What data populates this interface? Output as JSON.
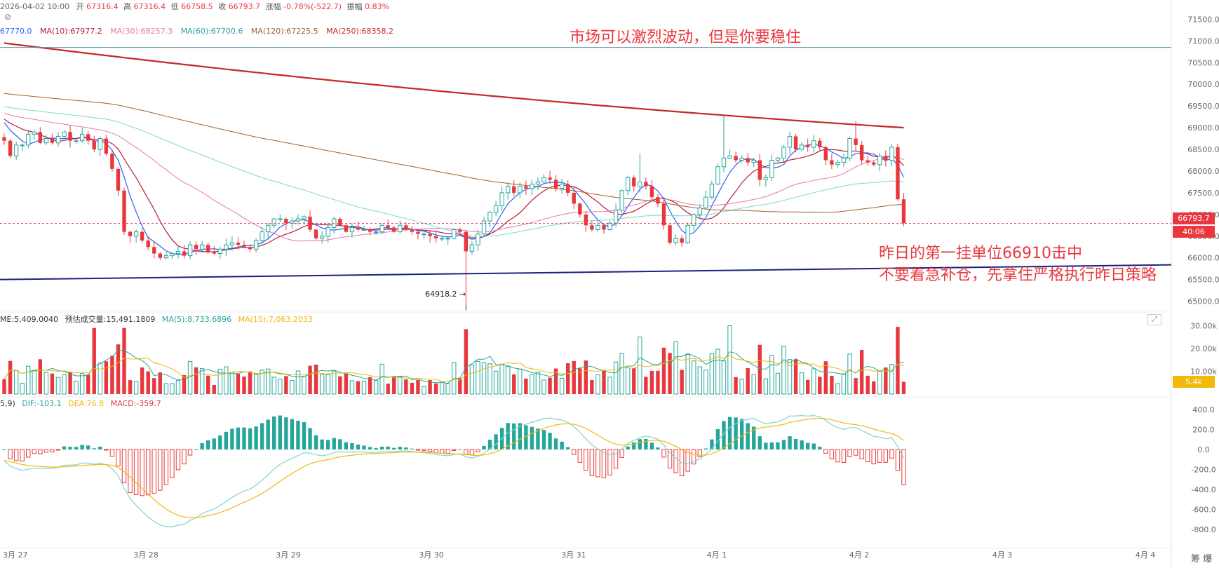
{
  "header": {
    "datetime": "2026-04-02 10:00",
    "open_label": "开",
    "open": "67316.4",
    "high_label": "高",
    "high": "67316.4",
    "low_label": "低",
    "low": "66758.5",
    "close_label": "收",
    "close": "66793.7",
    "change_label": "涨幅",
    "change": "-0.78%(-522.7)",
    "amplitude_label": "振幅",
    "amplitude": "0.83%"
  },
  "ma_legend": [
    {
      "text": "67770.0",
      "color": "#2962ff"
    },
    {
      "text": "MA(10):67977.2",
      "color": "#b71c3c"
    },
    {
      "text": "MA(30):68257.3",
      "color": "#e878a8"
    },
    {
      "text": "MA(60):67700.6",
      "color": "#26a69a"
    },
    {
      "text": "MA(120):67225.5",
      "color": "#a0622d"
    },
    {
      "text": "MA(250):68358.2",
      "color": "#c62828"
    }
  ],
  "volume_legend": [
    {
      "text": "ME:5,409.0040",
      "color": "#333333"
    },
    {
      "text": "预估成交量:15,491.1809",
      "color": "#333333"
    },
    {
      "text": "MA(5):8,733.6896",
      "color": "#26a69a"
    },
    {
      "text": "MA(10):7,063.2033",
      "color": "#f0b90b"
    }
  ],
  "macd_legend": [
    {
      "text": "5,9)",
      "color": "#333333"
    },
    {
      "text": "DIF:-103.1",
      "color": "#26a69a"
    },
    {
      "text": "DEA:76.8",
      "color": "#f0b90b"
    },
    {
      "text": "MACD:-359.7",
      "color": "#e8383d"
    }
  ],
  "annotations": {
    "top": "市场可以激烈波动，但是你要稳住",
    "right_line1": "昨日的第一挂单位66910击中",
    "right_line2": "不要着急补仓，先拿住严格执行昨日策略"
  },
  "price_tag": "66793.7",
  "countdown": "40:06",
  "volume_tag": "5.4k",
  "low_marker": "64918.2",
  "corner_label": "筹 爆",
  "colors": {
    "up": "#26a69a",
    "down": "#e8383d",
    "ma250": "#c62828",
    "trendline": "#1a237e"
  },
  "chart_data": {
    "type": "candlestick",
    "interval": "1h",
    "price_axis": {
      "min": 64800,
      "max": 71700,
      "ticks": [
        71500,
        71000,
        70500,
        70000,
        69500,
        69000,
        68500,
        68000,
        67500,
        67000,
        66500,
        66000,
        65500,
        65000
      ]
    },
    "volume_axis": {
      "max": 32000,
      "ticks": [
        30000,
        20000,
        10000
      ],
      "tick_labels": [
        "30.00k",
        "20.00k",
        "10.00k"
      ]
    },
    "macd_axis": {
      "min": -900,
      "max": 450,
      "ticks": [
        400,
        200,
        0,
        -200,
        -400,
        -600,
        -800
      ],
      "tick_labels": [
        "400.0",
        "200.0",
        "0.0",
        "-200.0",
        "-400.0",
        "-600.0",
        "-800.0"
      ]
    },
    "x_labels": [
      "3月 27",
      "3月 28",
      "3月 29",
      "3月 30",
      "3月 31",
      "4月 1",
      "4月 2",
      "4月 3",
      "4月 4"
    ],
    "closes": [
      68700,
      68350,
      68600,
      68600,
      68850,
      68900,
      68650,
      68750,
      68650,
      68800,
      68900,
      68700,
      68700,
      68850,
      68700,
      68500,
      68750,
      68400,
      68050,
      67550,
      66600,
      66500,
      66600,
      66400,
      66250,
      66100,
      66000,
      66050,
      66100,
      66150,
      66050,
      66300,
      66200,
      66300,
      66150,
      66100,
      66200,
      66300,
      66350,
      66300,
      66250,
      66200,
      66400,
      66600,
      66750,
      66900,
      66900,
      66800,
      66850,
      66900,
      66950,
      66650,
      66450,
      66500,
      66700,
      66900,
      66750,
      66600,
      66700,
      66650,
      66650,
      66600,
      66600,
      66750,
      66700,
      66600,
      66750,
      66650,
      66600,
      66550,
      66550,
      66500,
      66450,
      66450,
      66450,
      66650,
      66600,
      66150,
      66300,
      66550,
      66850,
      67050,
      67200,
      67500,
      67650,
      67500,
      67650,
      67600,
      67700,
      67750,
      67850,
      67800,
      67600,
      67700,
      67500,
      67250,
      67000,
      66750,
      66650,
      66750,
      66650,
      66800,
      67100,
      67550,
      67850,
      67650,
      67750,
      67650,
      67400,
      67250,
      66750,
      66350,
      66450,
      66350,
      66750,
      67000,
      67150,
      67400,
      67700,
      68100,
      68300,
      68350,
      68250,
      68300,
      68200,
      68250,
      67800,
      67850,
      68250,
      68300,
      68550,
      68800,
      68500,
      68600,
      68550,
      68700,
      68550,
      68250,
      68150,
      68200,
      68300,
      68750,
      68600,
      68250,
      68200,
      68150,
      68350,
      68250,
      68550,
      67350,
      66800
    ],
    "volume_ma_periods": [
      5,
      10
    ],
    "macd_params": [
      12,
      26,
      9
    ],
    "ma_periods": [
      5,
      10,
      30,
      60,
      120,
      250
    ],
    "last_close": 66793.7,
    "low_annotation": {
      "price": 64918.2
    }
  }
}
